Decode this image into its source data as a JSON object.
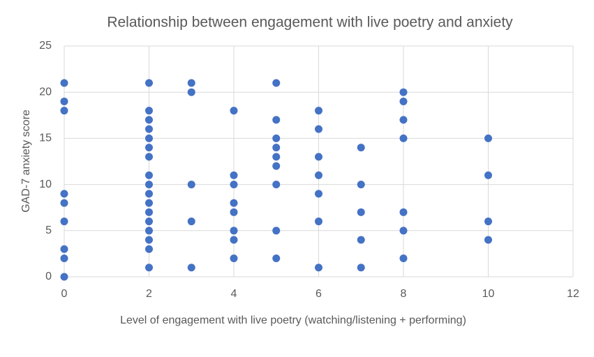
{
  "chart_data": {
    "type": "scatter",
    "title": "Relationship between engagement with live poetry and anxiety",
    "x_label": "Level of engagement with live poetry (watching/listening + performing)",
    "y_label": "GAD-7 anxiety score",
    "color": "#4472c4",
    "x": [
      0,
      0,
      0,
      0,
      0,
      0,
      0,
      0,
      0,
      2,
      2,
      2,
      2,
      2,
      2,
      2,
      2,
      2,
      2,
      2,
      2,
      2,
      2,
      2,
      2,
      2,
      3,
      3,
      3,
      3,
      3,
      4,
      4,
      4,
      4,
      4,
      4,
      4,
      4,
      5,
      5,
      5,
      5,
      5,
      5,
      5,
      5,
      5,
      6,
      6,
      6,
      6,
      6,
      6,
      6,
      7,
      7,
      7,
      7,
      7,
      8,
      8,
      8,
      8,
      8,
      8,
      8,
      10,
      10,
      10,
      10
    ],
    "y": [
      21,
      19,
      18,
      9,
      8,
      6,
      3,
      2,
      0,
      21,
      18,
      17,
      16,
      15,
      14,
      13,
      11,
      10,
      9,
      8,
      7,
      6,
      5,
      4,
      3,
      1,
      21,
      20,
      10,
      6,
      1,
      18,
      11,
      10,
      8,
      7,
      5,
      4,
      2,
      21,
      17,
      15,
      14,
      13,
      12,
      10,
      5,
      2,
      18,
      16,
      13,
      11,
      9,
      6,
      1,
      14,
      10,
      7,
      4,
      1,
      20,
      19,
      17,
      15,
      7,
      5,
      2,
      15,
      11,
      6,
      4
    ],
    "xlim": [
      0,
      12
    ],
    "xticks": [
      0,
      2,
      4,
      6,
      8,
      10,
      12
    ],
    "ylim": [
      0,
      25
    ],
    "yticks": [
      0,
      5,
      10,
      15,
      20,
      25
    ],
    "grid": true
  }
}
